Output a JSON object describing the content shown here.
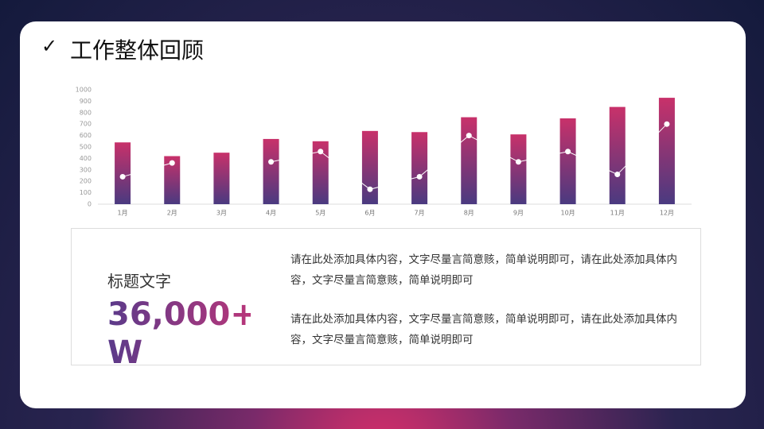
{
  "header": {
    "icon": "✓",
    "title": "工作整体回顾"
  },
  "chart_data": {
    "type": "bar-line",
    "categories": [
      "1月",
      "2月",
      "3月",
      "4月",
      "5月",
      "6月",
      "7月",
      "8月",
      "9月",
      "10月",
      "11月",
      "12月"
    ],
    "series": [
      {
        "type": "bar",
        "color": "#c8316a",
        "values": [
          540,
          420,
          450,
          570,
          550,
          640,
          630,
          760,
          610,
          750,
          850,
          930
        ]
      },
      {
        "type": "line",
        "color": "#ffffff",
        "values": [
          240,
          360,
          null,
          370,
          460,
          130,
          240,
          600,
          370,
          460,
          260,
          700
        ]
      }
    ],
    "ylim": [
      0,
      1000
    ],
    "yticks": [
      0,
      100,
      200,
      300,
      400,
      500,
      600,
      700,
      800,
      900,
      1000
    ],
    "grid": false
  },
  "card": {
    "subtitle": "标题文字",
    "number": "36,000+ W",
    "paragraphs": [
      "请在此处添加具体内容，文字尽量言简意赅，简单说明即可，请在此处添加具体内容，文字尽量言简意赅，简单说明即可",
      "请在此处添加具体内容，文字尽量言简意赅，简单说明即可，请在此处添加具体内容，文字尽量言简意赅，简单说明即可"
    ]
  }
}
